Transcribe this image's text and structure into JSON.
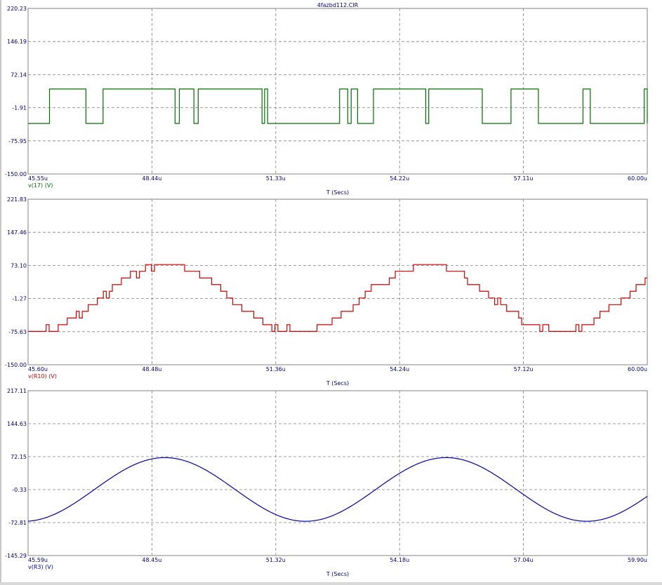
{
  "window": {
    "title": "4fazbd112.CIR"
  },
  "colors": {
    "axis_text": "#00007a",
    "grid": "#808080",
    "frame": "#808080"
  },
  "chart_data": [
    {
      "type": "line",
      "title": "4fazbd112.CIR",
      "xlabel": "T (Secs)",
      "ylabel": "",
      "xlim": [
        45.55,
        60.0
      ],
      "ylim": [
        -150.0,
        220.23
      ],
      "x_tick_labels": [
        "45.55u",
        "48.44u",
        "51.33u",
        "54.22u",
        "57.11u",
        "60.00u"
      ],
      "y_tick_labels": [
        "220.23",
        "146.19",
        "72.14",
        "-1.91",
        "-75.95",
        "-150.00"
      ],
      "y_ticks": [
        220.23,
        146.19,
        72.14,
        -1.91,
        -75.95,
        -150.0
      ],
      "grid": true,
      "series": [
        {
          "name": "v(17) (V)",
          "color": "#007000",
          "waveform": "pulse",
          "high": 40,
          "low": -37,
          "high_intervals": [
            [
              46.05,
              46.9
            ],
            [
              47.3,
              48.98
            ],
            [
              49.08,
              49.42
            ],
            [
              49.52,
              51.01
            ],
            [
              51.07,
              51.14
            ],
            [
              52.82,
              53.01
            ],
            [
              53.09,
              53.24
            ],
            [
              53.61,
              54.83
            ],
            [
              54.9,
              56.15
            ],
            [
              56.82,
              57.46
            ],
            [
              58.5,
              58.67
            ],
            [
              59.93,
              60.0
            ]
          ]
        }
      ]
    },
    {
      "type": "line",
      "xlabel": "T (Secs)",
      "ylabel": "",
      "xlim": [
        45.6,
        60.0
      ],
      "ylim": [
        -150.0,
        221.83
      ],
      "x_tick_labels": [
        "45.60u",
        "48.48u",
        "51.36u",
        "54.24u",
        "57.12u",
        "60.00u"
      ],
      "y_tick_labels": [
        "221.83",
        "147.46",
        "73.10",
        "-1.27",
        "-75.63",
        "-150.00"
      ],
      "y_ticks": [
        221.83,
        147.46,
        73.1,
        -1.27,
        -75.63,
        -150.0
      ],
      "grid": true,
      "series": [
        {
          "name": "v(R10) (V)",
          "color": "#d00000",
          "waveform": "multilevel stepped sine",
          "amplitude": 75,
          "period_us": 6.1,
          "trough_time_us": 45.72,
          "levels": [
            -75,
            -60,
            -45,
            -30,
            -15,
            0,
            15,
            30,
            45,
            60,
            75
          ]
        }
      ]
    },
    {
      "type": "line",
      "xlabel": "T (Secs)",
      "ylabel": "",
      "xlim": [
        45.59,
        59.9
      ],
      "ylim": [
        -145.29,
        217.11
      ],
      "x_tick_labels": [
        "45.59u",
        "48.45u",
        "51.32u",
        "54.18u",
        "57.04u",
        "59.90u"
      ],
      "y_tick_labels": [
        "217.11",
        "144.63",
        "72.15",
        "-0.33",
        "-72.81",
        "-145.29"
      ],
      "y_ticks": [
        217.11,
        144.63,
        72.15,
        -0.33,
        -72.81,
        -145.29
      ],
      "grid": true,
      "series": [
        {
          "name": "v(R3) (V)",
          "color": "#0000b0",
          "waveform": "sine",
          "amplitude": 70,
          "period_us": 6.5,
          "trough_time_us": 45.5
        }
      ]
    }
  ]
}
